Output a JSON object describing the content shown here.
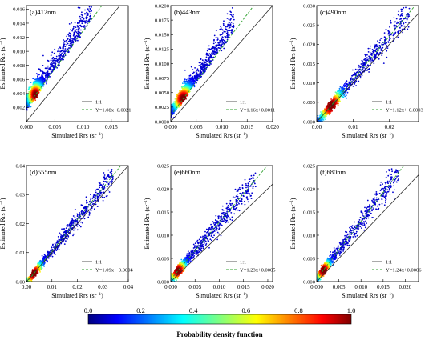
{
  "figure": {
    "colorbar_label": "Probability density function",
    "colorbar_ticks": [
      "0.0",
      "0.2",
      "0.4",
      "0.6",
      "0.8",
      "1.0"
    ],
    "colors": {
      "one_to_one": "#2b2b2b",
      "fit": "#2ca02c",
      "colormap": [
        "#00007f",
        "#0000ff",
        "#007fff",
        "#00ffff",
        "#7fff7f",
        "#ffff00",
        "#ff7f00",
        "#ff0000",
        "#7f0000"
      ]
    }
  },
  "chart_data": [
    {
      "type": "scatter",
      "id": "a",
      "title": "(a)412nm",
      "xlabel": "Simulated Rrs (sr",
      "xlabel_sup": "−1",
      "xlabel_end": ")",
      "ylabel": "Estimated Rrs (sr",
      "ylabel_sup": "−1",
      "ylabel_end": ")",
      "xlim": [
        0,
        0.018
      ],
      "ylim": [
        0,
        0.0165
      ],
      "xticks": [
        0,
        0.005,
        0.01,
        0.015
      ],
      "xtick_labels": [
        "0.000",
        "0.005",
        "0.010",
        "0.015"
      ],
      "yticks": [
        0.002,
        0.004,
        0.006,
        0.008,
        0.01,
        0.012,
        0.014,
        0.016
      ],
      "ytick_labels": [
        "0.002",
        "0.004",
        "0.006",
        "0.008",
        "0.010",
        "0.012",
        "0.014",
        "0.016"
      ],
      "fit": {
        "slope": 1.08,
        "intercept": 0.0021
      },
      "legend": [
        "1:1",
        "Y=1.08x+0.0021"
      ],
      "point_max": [
        0.0115,
        0.0165
      ],
      "density": {
        "center": [
          0.0016,
          0.0038
        ],
        "spread": [
          0.0006,
          0.0006
        ]
      }
    },
    {
      "type": "scatter",
      "id": "b",
      "title": "(b)443nm",
      "xlabel": "Simulated Rrs (sr",
      "xlabel_sup": "−1",
      "xlabel_end": ")",
      "ylabel": "Estimated Rrs (sr",
      "ylabel_sup": "−1",
      "ylabel_end": ")",
      "xlim": [
        0,
        0.02
      ],
      "ylim": [
        0,
        0.02
      ],
      "xticks": [
        0,
        0.005,
        0.01,
        0.015,
        0.02
      ],
      "xtick_labels": [
        "0.000",
        "0.005",
        "0.010",
        "0.015",
        "0.020"
      ],
      "yticks": [
        0,
        0.0025,
        0.005,
        0.0075,
        0.01,
        0.0125,
        0.015,
        0.0175,
        0.02
      ],
      "ytick_labels": [
        "0.0000",
        "0.0025",
        "0.0050",
        "0.0075",
        "0.0100",
        "0.0125",
        "0.0150",
        "0.0175",
        "0.0200"
      ],
      "fit": {
        "slope": 1.16,
        "intercept": 0.0011
      },
      "legend": [
        "1:1",
        "Y=1.16x+0.0011"
      ],
      "point_max": [
        0.0125,
        0.0195
      ],
      "density": {
        "center": [
          0.0025,
          0.0037
        ],
        "spread": [
          0.0009,
          0.0008
        ]
      }
    },
    {
      "type": "scatter",
      "id": "c",
      "title": "(c)490nm",
      "xlabel": "Simulated Rrs (sr",
      "xlabel_sup": "−1",
      "xlabel_end": ")",
      "ylabel": "Estimated Rrs (sr",
      "ylabel_sup": "−1",
      "ylabel_end": ")",
      "xlim": [
        0,
        0.028
      ],
      "ylim": [
        0,
        0.03
      ],
      "xticks": [
        0,
        0.01,
        0.02
      ],
      "xtick_labels": [
        "0.00",
        "0.01",
        "0.02"
      ],
      "yticks": [
        0,
        0.005,
        0.01,
        0.015,
        0.02,
        0.025,
        0.03
      ],
      "ytick_labels": [
        "0.000",
        "0.005",
        "0.010",
        "0.015",
        "0.020",
        "0.025",
        "0.030"
      ],
      "fit": {
        "slope": 1.12,
        "intercept": -0.0003
      },
      "legend": [
        "1:1",
        "Y=1.12x+-0.0003"
      ],
      "point_max": [
        0.0255,
        0.0265
      ],
      "density": {
        "center": [
          0.004,
          0.004
        ],
        "spread": [
          0.0015,
          0.0015
        ]
      }
    },
    {
      "type": "scatter",
      "id": "d",
      "title": "(d)555nm",
      "xlabel": "Simulated Rrs (sr",
      "xlabel_sup": "−1",
      "xlabel_end": ")",
      "ylabel": "Estimated Rrs (sr",
      "ylabel_sup": "−1",
      "ylabel_end": ")",
      "xlim": [
        0,
        0.04
      ],
      "ylim": [
        0,
        0.04
      ],
      "xticks": [
        0,
        0.01,
        0.02,
        0.03,
        0.04
      ],
      "xtick_labels": [
        "0.00",
        "0.01",
        "0.02",
        "0.03",
        "0.04"
      ],
      "yticks": [
        0,
        0.01,
        0.02,
        0.03,
        0.04
      ],
      "ytick_labels": [
        "0.00",
        "0.01",
        "0.02",
        "0.03",
        "0.04"
      ],
      "fit": {
        "slope": 1.09,
        "intercept": -0.0004
      },
      "legend": [
        "1:1",
        "Y=1.09x+-0.0004"
      ],
      "point_max": [
        0.034,
        0.0375
      ],
      "density": {
        "center": [
          0.003,
          0.003
        ],
        "spread": [
          0.0015,
          0.0015
        ]
      }
    },
    {
      "type": "scatter",
      "id": "e",
      "title": "(e)660nm",
      "xlabel": "Simulated Rrs (sr",
      "xlabel_sup": "−1",
      "xlabel_end": ")",
      "ylabel": "Estimated Rrs (sr",
      "ylabel_sup": "−1",
      "ylabel_end": ")",
      "xlim": [
        0,
        0.021
      ],
      "ylim": [
        0,
        0.025
      ],
      "xticks": [
        0,
        0.005,
        0.01,
        0.015,
        0.02
      ],
      "xtick_labels": [
        "0.000",
        "0.005",
        "0.010",
        "0.015",
        "0.020"
      ],
      "yticks": [
        0,
        0.005,
        0.01,
        0.015,
        0.02,
        0.025
      ],
      "ytick_labels": [
        "0.000",
        "0.005",
        "0.010",
        "0.015",
        "0.020",
        "0.025"
      ],
      "fit": {
        "slope": 1.23,
        "intercept": 0.0005
      },
      "legend": [
        "1:1",
        "Y=1.23x+0.0005"
      ],
      "point_max": [
        0.0175,
        0.0225
      ],
      "density": {
        "center": [
          0.0015,
          0.002
        ],
        "spread": [
          0.0008,
          0.0008
        ]
      }
    },
    {
      "type": "scatter",
      "id": "f",
      "title": "(f)680nm",
      "xlabel": "Simulated Rrs (sr",
      "xlabel_sup": "−1",
      "xlabel_end": ")",
      "ylabel": "Estimated Rrs (sr",
      "ylabel_sup": "−1",
      "ylabel_end": ")",
      "xlim": [
        0,
        0.023
      ],
      "ylim": [
        0,
        0.025
      ],
      "xticks": [
        0,
        0.005,
        0.01,
        0.015,
        0.02
      ],
      "xtick_labels": [
        "0.000",
        "0.005",
        "0.010",
        "0.015",
        "0.020"
      ],
      "yticks": [
        0,
        0.005,
        0.01,
        0.015,
        0.02,
        0.025
      ],
      "ytick_labels": [
        "0.000",
        "0.005",
        "0.010",
        "0.015",
        "0.020",
        "0.025"
      ],
      "fit": {
        "slope": 1.24,
        "intercept": 0.0006
      },
      "legend": [
        "1:1",
        "Y=1.24x+0.0006"
      ],
      "point_max": [
        0.0185,
        0.0235
      ],
      "density": {
        "center": [
          0.0015,
          0.002
        ],
        "spread": [
          0.0008,
          0.0008
        ]
      }
    }
  ]
}
